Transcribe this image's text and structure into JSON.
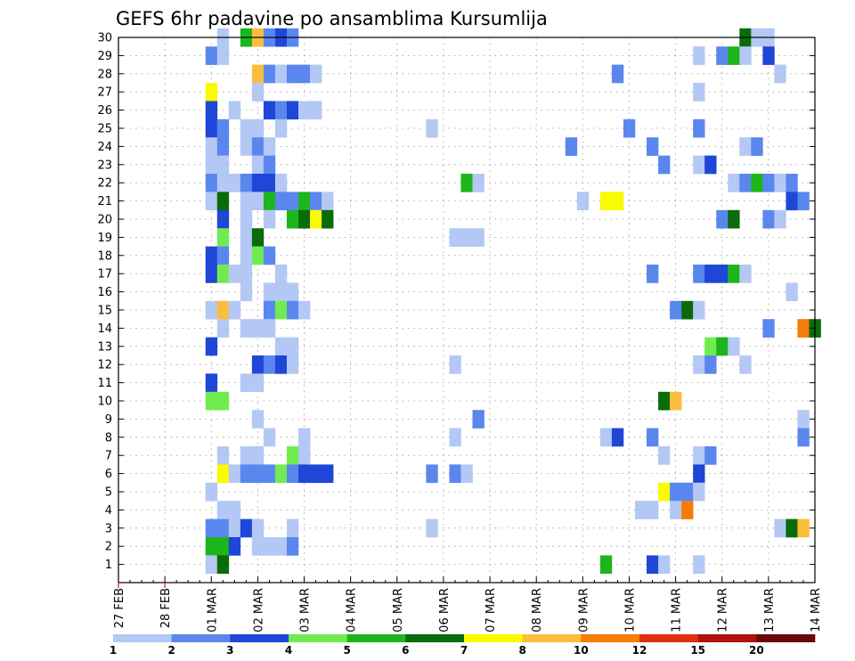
{
  "chart_data": {
    "type": "heatmap",
    "title": "GEFS 6hr padavine po ansamblima Kursumlija",
    "xlabel": "",
    "ylabel": "",
    "x_tick_labels": [
      "27 FEB",
      "28 FEB",
      "01 MAR",
      "02 MAR",
      "03 MAR",
      "04 MAR",
      "05 MAR",
      "06 MAR",
      "07 MAR",
      "08 MAR",
      "09 MAR",
      "10 MAR",
      "11 MAR",
      "12 MAR",
      "13 MAR",
      "14 MAR"
    ],
    "y_tick_labels": [
      "1",
      "2",
      "3",
      "4",
      "5",
      "6",
      "7",
      "8",
      "9",
      "10",
      "11",
      "12",
      "13",
      "14",
      "15",
      "16",
      "17",
      "18",
      "19",
      "20",
      "21",
      "22",
      "23",
      "24",
      "25",
      "26",
      "27",
      "28",
      "29",
      "30"
    ],
    "x_unit": "6h step from 27 FEB 00z",
    "x_range": [
      0,
      60
    ],
    "y_range": [
      0,
      30
    ],
    "grid": true,
    "legend": {
      "placement": "bottom",
      "levels": [
        "1",
        "2",
        "3",
        "4",
        "5",
        "6",
        "7",
        "8",
        "10",
        "12",
        "15",
        "20"
      ],
      "colors": [
        "#b4c8f5",
        "#5a87ee",
        "#1e46d7",
        "#70ec51",
        "#1db51c",
        "#0a6b0a",
        "#fafa00",
        "#fbbe3b",
        "#f77b07",
        "#e03010",
        "#b0120c",
        "#6a0808"
      ]
    },
    "cells": [
      [
        9,
        30,
        1
      ],
      [
        11,
        30,
        5
      ],
      [
        12,
        30,
        8
      ],
      [
        13,
        30,
        2
      ],
      [
        14,
        30,
        3
      ],
      [
        15,
        30,
        2
      ],
      [
        54,
        30,
        6
      ],
      [
        55,
        30,
        1
      ],
      [
        56,
        30,
        1
      ],
      [
        8,
        29,
        2
      ],
      [
        9,
        29,
        1
      ],
      [
        50,
        29,
        1
      ],
      [
        52,
        29,
        2
      ],
      [
        53,
        29,
        5
      ],
      [
        54,
        29,
        1
      ],
      [
        56,
        29,
        3
      ],
      [
        12,
        28,
        8
      ],
      [
        13,
        28,
        2
      ],
      [
        14,
        28,
        1
      ],
      [
        15,
        28,
        2
      ],
      [
        16,
        28,
        2
      ],
      [
        17,
        28,
        1
      ],
      [
        43,
        28,
        2
      ],
      [
        57,
        28,
        1
      ],
      [
        8,
        27,
        7
      ],
      [
        12,
        27,
        1
      ],
      [
        50,
        27,
        1
      ],
      [
        8,
        26,
        3
      ],
      [
        10,
        26,
        1
      ],
      [
        13,
        26,
        3
      ],
      [
        14,
        26,
        2
      ],
      [
        15,
        26,
        3
      ],
      [
        16,
        26,
        1
      ],
      [
        17,
        26,
        1
      ],
      [
        8,
        25,
        3
      ],
      [
        9,
        25,
        2
      ],
      [
        11,
        25,
        1
      ],
      [
        12,
        25,
        1
      ],
      [
        14,
        25,
        1
      ],
      [
        27,
        25,
        1
      ],
      [
        44,
        25,
        2
      ],
      [
        50,
        25,
        2
      ],
      [
        8,
        24,
        1
      ],
      [
        9,
        24,
        2
      ],
      [
        11,
        24,
        1
      ],
      [
        12,
        24,
        2
      ],
      [
        13,
        24,
        1
      ],
      [
        39,
        24,
        2
      ],
      [
        46,
        24,
        2
      ],
      [
        54,
        24,
        1
      ],
      [
        55,
        24,
        2
      ],
      [
        8,
        23,
        1
      ],
      [
        9,
        23,
        1
      ],
      [
        12,
        23,
        1
      ],
      [
        13,
        23,
        2
      ],
      [
        47,
        23,
        2
      ],
      [
        50,
        23,
        1
      ],
      [
        51,
        23,
        3
      ],
      [
        8,
        22,
        2
      ],
      [
        9,
        22,
        1
      ],
      [
        10,
        22,
        1
      ],
      [
        11,
        22,
        2
      ],
      [
        12,
        22,
        3
      ],
      [
        13,
        22,
        3
      ],
      [
        14,
        22,
        1
      ],
      [
        30,
        22,
        5
      ],
      [
        31,
        22,
        1
      ],
      [
        53,
        22,
        1
      ],
      [
        54,
        22,
        2
      ],
      [
        55,
        22,
        5
      ],
      [
        56,
        22,
        2
      ],
      [
        57,
        22,
        1
      ],
      [
        58,
        22,
        2
      ],
      [
        8,
        21,
        1
      ],
      [
        9,
        21,
        6
      ],
      [
        11,
        21,
        1
      ],
      [
        12,
        21,
        1
      ],
      [
        13,
        21,
        5
      ],
      [
        14,
        21,
        2
      ],
      [
        15,
        21,
        2
      ],
      [
        16,
        21,
        5
      ],
      [
        17,
        21,
        2
      ],
      [
        18,
        21,
        1
      ],
      [
        40,
        21,
        1
      ],
      [
        42,
        21,
        7
      ],
      [
        43,
        21,
        7
      ],
      [
        58,
        21,
        3
      ],
      [
        59,
        21,
        2
      ],
      [
        9,
        20,
        3
      ],
      [
        11,
        20,
        1
      ],
      [
        13,
        20,
        1
      ],
      [
        15,
        20,
        5
      ],
      [
        16,
        20,
        6
      ],
      [
        17,
        20,
        7
      ],
      [
        18,
        20,
        6
      ],
      [
        52,
        20,
        2
      ],
      [
        53,
        20,
        6
      ],
      [
        56,
        20,
        2
      ],
      [
        57,
        20,
        1
      ],
      [
        9,
        19,
        4
      ],
      [
        11,
        19,
        1
      ],
      [
        12,
        19,
        6
      ],
      [
        29,
        19,
        1
      ],
      [
        30,
        19,
        1
      ],
      [
        31,
        19,
        1
      ],
      [
        8,
        18,
        3
      ],
      [
        9,
        18,
        2
      ],
      [
        11,
        18,
        1
      ],
      [
        12,
        18,
        4
      ],
      [
        13,
        18,
        2
      ],
      [
        8,
        17,
        3
      ],
      [
        9,
        17,
        4
      ],
      [
        10,
        17,
        1
      ],
      [
        11,
        17,
        1
      ],
      [
        14,
        17,
        1
      ],
      [
        46,
        17,
        2
      ],
      [
        50,
        17,
        2
      ],
      [
        51,
        17,
        3
      ],
      [
        52,
        17,
        3
      ],
      [
        53,
        17,
        5
      ],
      [
        54,
        17,
        1
      ],
      [
        11,
        16,
        1
      ],
      [
        13,
        16,
        1
      ],
      [
        14,
        16,
        1
      ],
      [
        15,
        16,
        1
      ],
      [
        58,
        16,
        1
      ],
      [
        8,
        15,
        1
      ],
      [
        9,
        15,
        8
      ],
      [
        10,
        15,
        1
      ],
      [
        13,
        15,
        2
      ],
      [
        14,
        15,
        4
      ],
      [
        15,
        15,
        2
      ],
      [
        16,
        15,
        1
      ],
      [
        48,
        15,
        2
      ],
      [
        49,
        15,
        6
      ],
      [
        50,
        15,
        1
      ],
      [
        9,
        14,
        1
      ],
      [
        11,
        14,
        1
      ],
      [
        12,
        14,
        1
      ],
      [
        13,
        14,
        1
      ],
      [
        56,
        14,
        2
      ],
      [
        59,
        14,
        9
      ],
      [
        60,
        14,
        6
      ],
      [
        8,
        13,
        3
      ],
      [
        14,
        13,
        1
      ],
      [
        15,
        13,
        1
      ],
      [
        51,
        13,
        4
      ],
      [
        52,
        13,
        5
      ],
      [
        53,
        13,
        1
      ],
      [
        12,
        12,
        3
      ],
      [
        13,
        12,
        2
      ],
      [
        14,
        12,
        3
      ],
      [
        15,
        12,
        1
      ],
      [
        29,
        12,
        1
      ],
      [
        50,
        12,
        1
      ],
      [
        51,
        12,
        2
      ],
      [
        54,
        12,
        1
      ],
      [
        8,
        11,
        3
      ],
      [
        11,
        11,
        1
      ],
      [
        12,
        11,
        1
      ],
      [
        8,
        10,
        4
      ],
      [
        9,
        10,
        4
      ],
      [
        47,
        10,
        6
      ],
      [
        48,
        10,
        8
      ],
      [
        12,
        9,
        1
      ],
      [
        31,
        9,
        2
      ],
      [
        59,
        9,
        1
      ],
      [
        13,
        8,
        1
      ],
      [
        16,
        8,
        1
      ],
      [
        29,
        8,
        1
      ],
      [
        42,
        8,
        1
      ],
      [
        43,
        8,
        3
      ],
      [
        46,
        8,
        2
      ],
      [
        59,
        8,
        2
      ],
      [
        9,
        7,
        1
      ],
      [
        11,
        7,
        1
      ],
      [
        12,
        7,
        1
      ],
      [
        15,
        7,
        4
      ],
      [
        16,
        7,
        1
      ],
      [
        47,
        7,
        1
      ],
      [
        50,
        7,
        1
      ],
      [
        51,
        7,
        2
      ],
      [
        9,
        6,
        7
      ],
      [
        10,
        6,
        1
      ],
      [
        11,
        6,
        2
      ],
      [
        12,
        6,
        2
      ],
      [
        13,
        6,
        2
      ],
      [
        14,
        6,
        4
      ],
      [
        15,
        6,
        2
      ],
      [
        16,
        6,
        3
      ],
      [
        17,
        6,
        3
      ],
      [
        18,
        6,
        3
      ],
      [
        27,
        6,
        2
      ],
      [
        29,
        6,
        2
      ],
      [
        30,
        6,
        1
      ],
      [
        50,
        6,
        3
      ],
      [
        8,
        5,
        1
      ],
      [
        47,
        5,
        7
      ],
      [
        48,
        5,
        2
      ],
      [
        49,
        5,
        2
      ],
      [
        50,
        5,
        1
      ],
      [
        9,
        4,
        1
      ],
      [
        10,
        4,
        1
      ],
      [
        45,
        4,
        1
      ],
      [
        46,
        4,
        1
      ],
      [
        48,
        4,
        1
      ],
      [
        49,
        4,
        9
      ],
      [
        8,
        3,
        2
      ],
      [
        9,
        3,
        2
      ],
      [
        10,
        3,
        1
      ],
      [
        11,
        3,
        3
      ],
      [
        12,
        3,
        1
      ],
      [
        15,
        3,
        1
      ],
      [
        27,
        3,
        1
      ],
      [
        57,
        3,
        1
      ],
      [
        58,
        3,
        6
      ],
      [
        59,
        3,
        8
      ],
      [
        8,
        2,
        5
      ],
      [
        9,
        2,
        5
      ],
      [
        10,
        2,
        3
      ],
      [
        12,
        2,
        1
      ],
      [
        13,
        2,
        1
      ],
      [
        14,
        2,
        1
      ],
      [
        15,
        2,
        2
      ],
      [
        8,
        1,
        1
      ],
      [
        9,
        1,
        6
      ],
      [
        42,
        1,
        5
      ],
      [
        46,
        1,
        3
      ],
      [
        47,
        1,
        1
      ],
      [
        50,
        1,
        1
      ]
    ]
  }
}
